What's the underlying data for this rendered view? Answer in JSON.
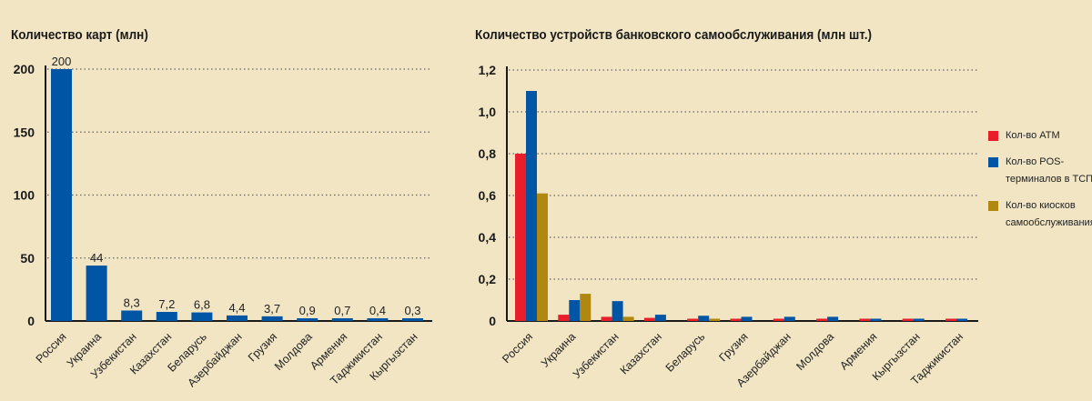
{
  "chart_data": [
    {
      "type": "bar",
      "title": "Количество карт (млн)",
      "categories": [
        "Россия",
        "Украина",
        "Узбекистан",
        "Казахстан",
        "Беларусь",
        "Азербайджан",
        "Грузия",
        "Молдова",
        "Армения",
        "Таджикистан",
        "Кыргызстан"
      ],
      "values": [
        200,
        44,
        8.3,
        7.2,
        6.8,
        4.4,
        3.7,
        0.9,
        0.7,
        0.4,
        0.3
      ],
      "data_labels": [
        "200",
        "44",
        "8,3",
        "7,2",
        "6,8",
        "4,4",
        "3,7",
        "0,9",
        "0,7",
        "0,4",
        "0,3"
      ],
      "ylim": [
        0,
        200
      ],
      "yticks": [
        0,
        50,
        100,
        150,
        200
      ],
      "ytick_labels": [
        "0",
        "50",
        "100",
        "150",
        "200"
      ],
      "grid": true,
      "color": "#0055a4"
    },
    {
      "type": "bar",
      "title": "Количество устройств банковского самообслуживания (млн шт.)",
      "categories": [
        "Россия",
        "Украина",
        "Узбекистан",
        "Казахстан",
        "Беларусь",
        "Грузия",
        "Азербайджан",
        "Молдова",
        "Армения",
        "Кыргызстан",
        "Таджикистан"
      ],
      "series": [
        {
          "name": "Кол-во ATM",
          "color": "#e81e2a",
          "values": [
            0.8,
            0.03,
            0.02,
            0.015,
            0.01,
            0.01,
            0.01,
            0.01,
            0.01,
            0.01,
            0.01
          ]
        },
        {
          "name": "Кол-во POS-терминалов в ТСП",
          "color": "#0055a4",
          "values": [
            1.1,
            0.1,
            0.095,
            0.03,
            0.025,
            0.02,
            0.02,
            0.02,
            0.01,
            0.01,
            0.01
          ]
        },
        {
          "name": "Кол-во киосков самообслуживания",
          "color": "#b0880f",
          "values": [
            0.61,
            0.13,
            0.02,
            0,
            0.01,
            0,
            0,
            0,
            0,
            0,
            0
          ]
        }
      ],
      "ylim": [
        0,
        1.2
      ],
      "yticks": [
        0,
        0.2,
        0.4,
        0.6,
        0.8,
        1.0,
        1.2
      ],
      "ytick_labels": [
        "0",
        "0,2",
        "0,4",
        "0,6",
        "0,8",
        "1,0",
        "1,2"
      ],
      "grid": true,
      "legend": "right"
    }
  ]
}
